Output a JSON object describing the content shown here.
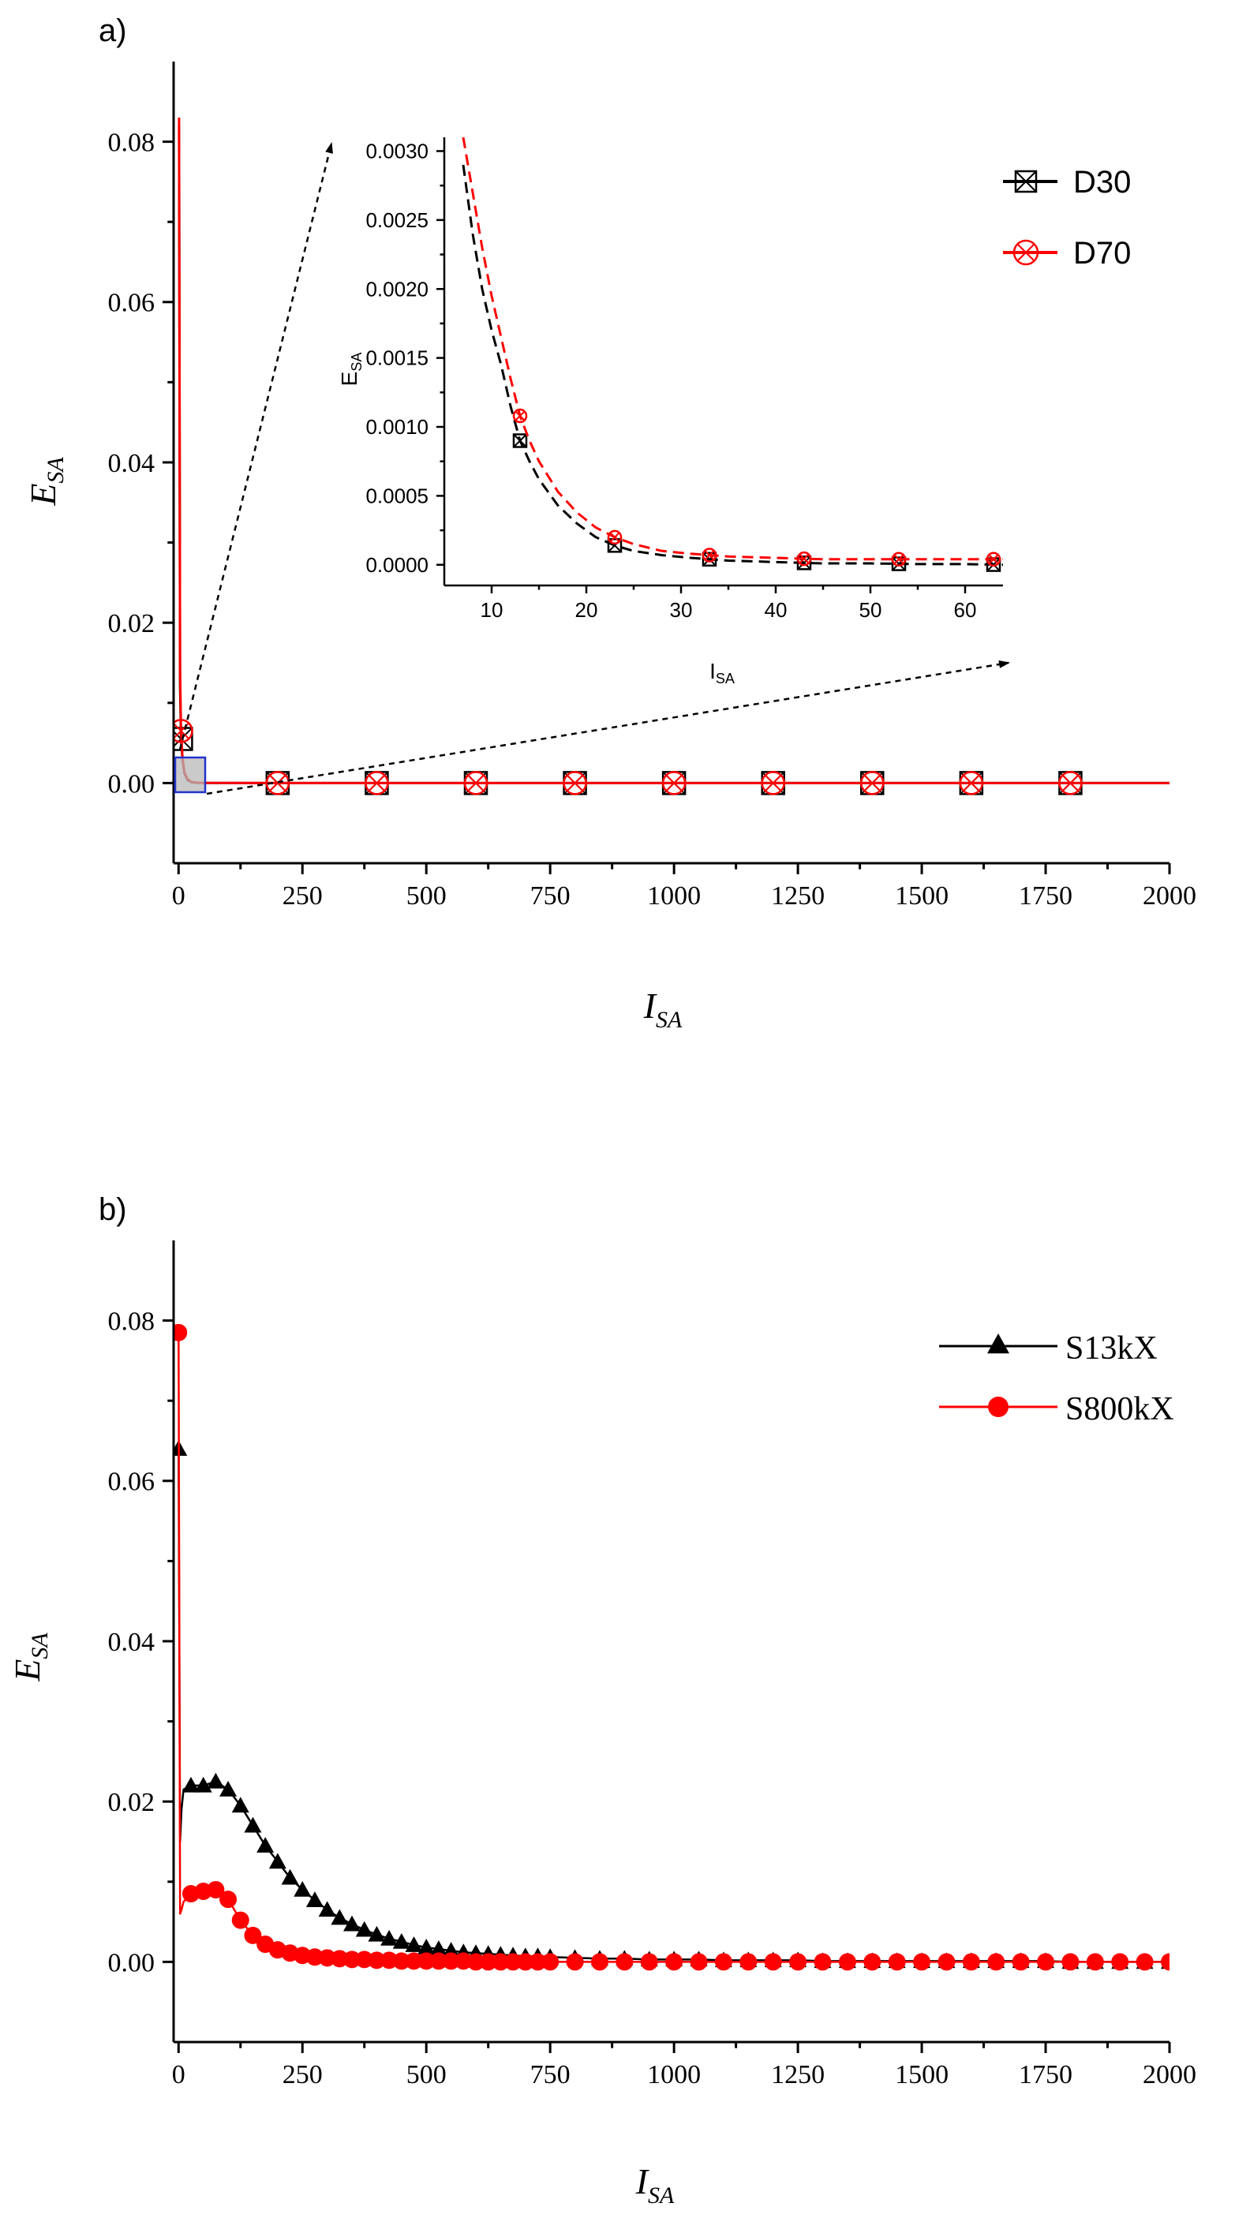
{
  "chart_data": [
    {
      "type": "line",
      "panel_label": "a)",
      "xlabel": "I",
      "xlabel_sub": "SA",
      "ylabel": "E",
      "ylabel_sub": "SA",
      "xlim": [
        -10,
        2000
      ],
      "ylim": [
        -0.01,
        0.09
      ],
      "xticks": [
        0,
        250,
        500,
        750,
        1000,
        1250,
        1500,
        1750,
        2000
      ],
      "xtick_labels": [
        "0",
        "250",
        "500",
        "750",
        "1000",
        "1250",
        "1500",
        "1750",
        "2000"
      ],
      "yticks": [
        0.0,
        0.02,
        0.04,
        0.06,
        0.08
      ],
      "ytick_labels": [
        "0.00",
        "0.02",
        "0.04",
        "0.06",
        "0.08"
      ],
      "legend_position": "top-right",
      "series": [
        {
          "name": "D30",
          "color": "#000000",
          "marker": "square-cross",
          "x": [
            1,
            3,
            5,
            8,
            12,
            18,
            25,
            35,
            50,
            200,
            400,
            600,
            800,
            1000,
            1200,
            1400,
            1600,
            1800,
            2000
          ],
          "y": [
            0.082,
            0.012,
            0.0055,
            0.0029,
            0.0012,
            0.0004,
            0.00013,
            4e-05,
            1e-05,
            0,
            0,
            0,
            0,
            0,
            0,
            0,
            0,
            0,
            0
          ],
          "marker_x": [
            5,
            200,
            400,
            600,
            800,
            1000,
            1200,
            1400,
            1600,
            1800
          ]
        },
        {
          "name": "D70",
          "color": "#ff0000",
          "marker": "circle-cross",
          "x": [
            1,
            3,
            5,
            8,
            12,
            18,
            25,
            35,
            50,
            200,
            400,
            600,
            800,
            1000,
            1200,
            1400,
            1600,
            1800,
            2000
          ],
          "y": [
            0.083,
            0.014,
            0.0065,
            0.0031,
            0.0013,
            0.0005,
            0.00018,
            6e-05,
            3e-05,
            0,
            0,
            0,
            0,
            0,
            0,
            0,
            0,
            0,
            0
          ],
          "marker_x": [
            5,
            200,
            400,
            600,
            800,
            1000,
            1200,
            1400,
            1600,
            1800
          ]
        }
      ],
      "inset": {
        "xlabel": "I",
        "xlabel_sub": "SA",
        "ylabel": "E",
        "ylabel_sub": "SA",
        "xlim": [
          5,
          64
        ],
        "ylim": [
          -0.00015,
          0.0031
        ],
        "xticks": [
          10,
          20,
          30,
          40,
          50,
          60
        ],
        "xtick_labels": [
          "10",
          "20",
          "30",
          "40",
          "50",
          "60"
        ],
        "yticks": [
          0.0,
          0.0005,
          0.001,
          0.0015,
          0.002,
          0.0025,
          0.003
        ],
        "ytick_labels": [
          "0.0000",
          "0.0005",
          "0.0010",
          "0.0015",
          "0.0020",
          "0.0025",
          "0.0030"
        ],
        "series": [
          {
            "name": "D30",
            "color": "#000000",
            "x": [
              7,
              8,
              9,
              10,
              11,
              12,
              13,
              14,
              15,
              17,
              19,
              21,
              23,
              25,
              28,
              31,
              35,
              40,
              45,
              50,
              55,
              60,
              64
            ],
            "y": [
              0.0029,
              0.0024,
              0.002,
              0.0017,
              0.00145,
              0.00115,
              0.0009,
              0.00075,
              0.00062,
              0.00043,
              0.0003,
              0.0002,
              0.00014,
              0.0001,
              7e-05,
              5e-05,
              3e-05,
              2e-05,
              1e-05,
              1e-05,
              5e-06,
              5e-06,
              0.0
            ],
            "marker_x": [
              13,
              23,
              33,
              43,
              53,
              63
            ]
          },
          {
            "name": "D70",
            "color": "#ff0000",
            "x": [
              7,
              8,
              9,
              10,
              11,
              12,
              13,
              14,
              15,
              17,
              19,
              21,
              23,
              25,
              28,
              31,
              35,
              40,
              45,
              50,
              55,
              60,
              64
            ],
            "y": [
              0.0031,
              0.0027,
              0.0023,
              0.00195,
              0.00165,
              0.00135,
              0.00108,
              0.0009,
              0.00075,
              0.00053,
              0.00038,
              0.00027,
              0.0002,
              0.00015,
              0.0001,
              8e-05,
              6e-05,
              5e-05,
              4e-05,
              4e-05,
              4e-05,
              4e-05,
              4e-05
            ],
            "marker_x": [
              13,
              23,
              33,
              43,
              53,
              63
            ]
          }
        ]
      }
    },
    {
      "type": "line",
      "panel_label": "b)",
      "xlabel": "I",
      "xlabel_sub": "SA",
      "ylabel": "E",
      "ylabel_sub": "SA",
      "xlim": [
        -10,
        2000
      ],
      "ylim": [
        -0.01,
        0.09
      ],
      "xticks": [
        0,
        250,
        500,
        750,
        1000,
        1250,
        1500,
        1750,
        2000
      ],
      "xtick_labels": [
        "0",
        "250",
        "500",
        "750",
        "1000",
        "1250",
        "1500",
        "1750",
        "2000"
      ],
      "yticks": [
        0.0,
        0.02,
        0.04,
        0.06,
        0.08
      ],
      "ytick_labels": [
        "0.00",
        "0.02",
        "0.04",
        "0.06",
        "0.08"
      ],
      "legend_position": "top-right",
      "series": [
        {
          "name": "S13kX",
          "color": "#000000",
          "marker": "triangle",
          "x": [
            0,
            3,
            6,
            10,
            25,
            50,
            75,
            100,
            125,
            150,
            175,
            200,
            225,
            250,
            275,
            300,
            325,
            350,
            375,
            400,
            425,
            450,
            475,
            500,
            525,
            550,
            575,
            600,
            625,
            650,
            675,
            700,
            725,
            750,
            800,
            850,
            900,
            950,
            1000,
            1050,
            1100,
            1150,
            1200,
            1250,
            1300,
            1350,
            1400,
            1450,
            1500,
            1550,
            1600,
            1650,
            1700,
            1750,
            1800,
            1850,
            1900,
            1950,
            2000
          ],
          "y": [
            0.064,
            0.015,
            0.019,
            0.0215,
            0.022,
            0.022,
            0.0225,
            0.0215,
            0.0195,
            0.017,
            0.0145,
            0.0125,
            0.0105,
            0.009,
            0.0077,
            0.0065,
            0.0055,
            0.0047,
            0.004,
            0.0034,
            0.0029,
            0.0025,
            0.0021,
            0.0018,
            0.0016,
            0.0014,
            0.0012,
            0.0011,
            0.001,
            0.0009,
            0.0008,
            0.0007,
            0.0007,
            0.0006,
            0.0005,
            0.0004,
            0.0004,
            0.0003,
            0.0003,
            0.0003,
            0.0002,
            0.0002,
            0.0002,
            0.0002,
            0.0001,
            0.0001,
            0.0001,
            0.0001,
            0.0001,
            0.0001,
            0.0001,
            0.0001,
            0.0001,
            0.0001,
            0.0,
            0.0,
            0.0,
            0.0,
            0.0
          ],
          "marker_x": [
            0,
            25,
            50,
            75,
            100,
            125,
            150,
            175,
            200,
            225,
            250,
            275,
            300,
            325,
            350,
            375,
            400,
            425,
            450,
            475,
            500,
            525,
            550,
            575,
            600,
            625,
            650,
            675,
            700,
            725,
            750,
            800,
            850,
            900,
            950,
            1000,
            1050,
            1100,
            1150,
            1200,
            1250,
            1300,
            1350,
            1400,
            1450,
            1500,
            1550,
            1600,
            1650,
            1700,
            1750,
            1800,
            1850,
            1900,
            1950,
            2000
          ]
        },
        {
          "name": "S800kX",
          "color": "#ff0000",
          "marker": "circle",
          "x": [
            0,
            3,
            6,
            10,
            25,
            50,
            75,
            100,
            125,
            150,
            175,
            200,
            225,
            250,
            275,
            300,
            325,
            350,
            375,
            400,
            425,
            450,
            475,
            500,
            525,
            550,
            575,
            600,
            625,
            650,
            675,
            700,
            725,
            750,
            800,
            850,
            900,
            950,
            1000,
            1050,
            1100,
            1150,
            1200,
            1250,
            1300,
            1350,
            1400,
            1450,
            1500,
            1550,
            1600,
            1650,
            1700,
            1750,
            1800,
            1850,
            1900,
            1950,
            2000
          ],
          "y": [
            0.0785,
            0.006,
            0.0065,
            0.0075,
            0.0085,
            0.0088,
            0.009,
            0.0078,
            0.0052,
            0.0033,
            0.0022,
            0.0015,
            0.0011,
            0.0008,
            0.0006,
            0.0005,
            0.0004,
            0.0003,
            0.0003,
            0.0002,
            0.0002,
            0.0001,
            0.0001,
            0.0001,
            0.0001,
            0.0001,
            0.0001,
            0.0,
            0.0,
            0.0,
            0.0,
            0.0,
            0.0,
            0.0,
            0.0,
            0.0,
            0.0,
            0.0,
            0.0,
            0.0,
            0.0,
            0.0,
            0.0,
            0.0,
            0.0,
            0.0,
            0.0,
            0.0,
            0.0,
            0.0,
            0.0,
            0.0,
            0.0,
            0.0,
            0.0,
            0.0,
            0.0,
            0.0,
            0.0
          ],
          "marker_x": [
            0,
            25,
            50,
            75,
            100,
            125,
            150,
            175,
            200,
            225,
            250,
            275,
            300,
            325,
            350,
            375,
            400,
            425,
            450,
            475,
            500,
            525,
            550,
            575,
            600,
            625,
            650,
            675,
            700,
            725,
            750,
            800,
            850,
            900,
            950,
            1000,
            1050,
            1100,
            1150,
            1200,
            1250,
            1300,
            1350,
            1400,
            1450,
            1500,
            1550,
            1600,
            1650,
            1700,
            1750,
            1800,
            1850,
            1900,
            1950,
            2000
          ]
        }
      ]
    }
  ]
}
